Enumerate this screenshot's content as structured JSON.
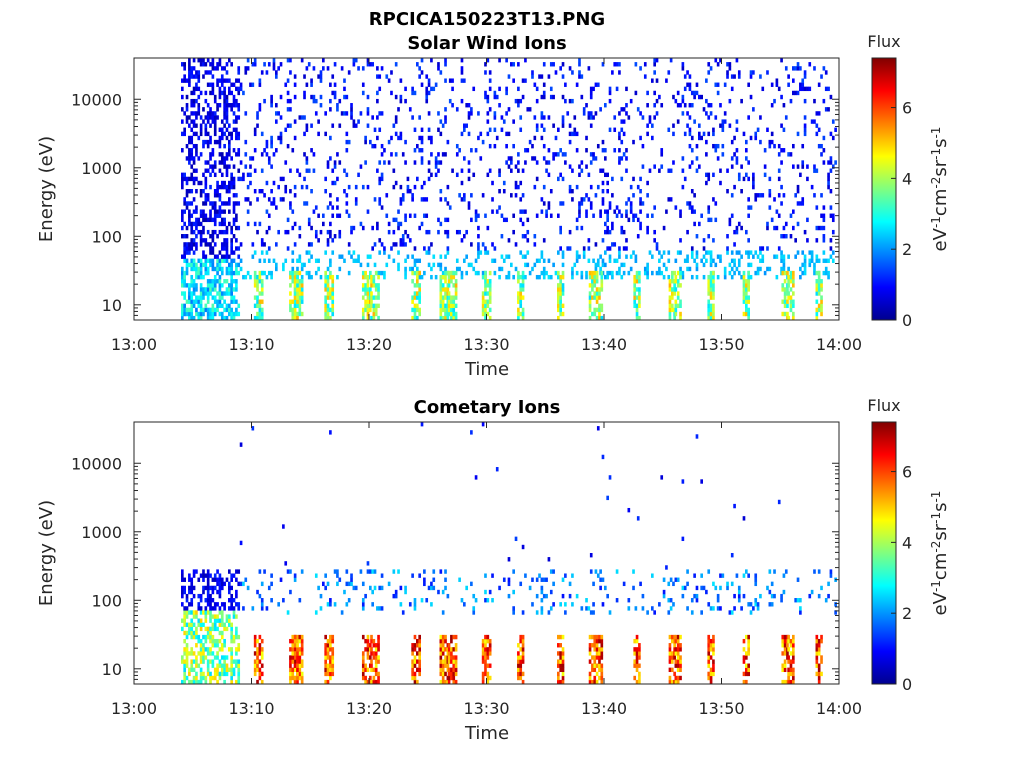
{
  "figure_title": "RPCICA150223T13.PNG",
  "colorbar": {
    "title": "Flux",
    "label": "eV-1cm-2sr-1s-1",
    "ticks": [
      "0",
      "2",
      "4",
      "6"
    ],
    "range": [
      0,
      7.4
    ],
    "colormap": "jet"
  },
  "chart_data": [
    {
      "type": "heatmap",
      "title": "Solar Wind Ions",
      "xlabel": "Time",
      "ylabel": "Energy (eV)",
      "xticks": [
        "13:00",
        "13:10",
        "13:20",
        "13:30",
        "13:40",
        "13:50",
        "14:00"
      ],
      "xlim": [
        "13:00",
        "14:00"
      ],
      "yticks": [
        "10",
        "100",
        "1000",
        "10000"
      ],
      "ylim": [
        6,
        40000
      ],
      "yscale": "log",
      "data_start": "13:04",
      "features": {
        "background_flux_range": [
          0.5,
          1.5
        ],
        "background_energy_range_eV": [
          70,
          40000
        ],
        "low_energy_flux_range": [
          2.0,
          2.8
        ],
        "peak_flux": 5.2
      }
    },
    {
      "type": "heatmap",
      "title": "Cometary Ions",
      "xlabel": "Time",
      "ylabel": "Energy (eV)",
      "xticks": [
        "13:00",
        "13:10",
        "13:20",
        "13:30",
        "13:40",
        "13:50",
        "14:00"
      ],
      "xlim": [
        "13:00",
        "14:00"
      ],
      "yticks": [
        "10",
        "100",
        "1000",
        "10000"
      ],
      "ylim": [
        6,
        40000
      ],
      "yscale": "log",
      "data_start": "13:04",
      "features": {
        "background_flux_range": [
          0.5,
          2.5
        ],
        "background_energy_range_eV": [
          60,
          300
        ],
        "low_energy_flux_range": [
          4.5,
          7.2
        ],
        "peak_flux": 7.2
      }
    }
  ]
}
